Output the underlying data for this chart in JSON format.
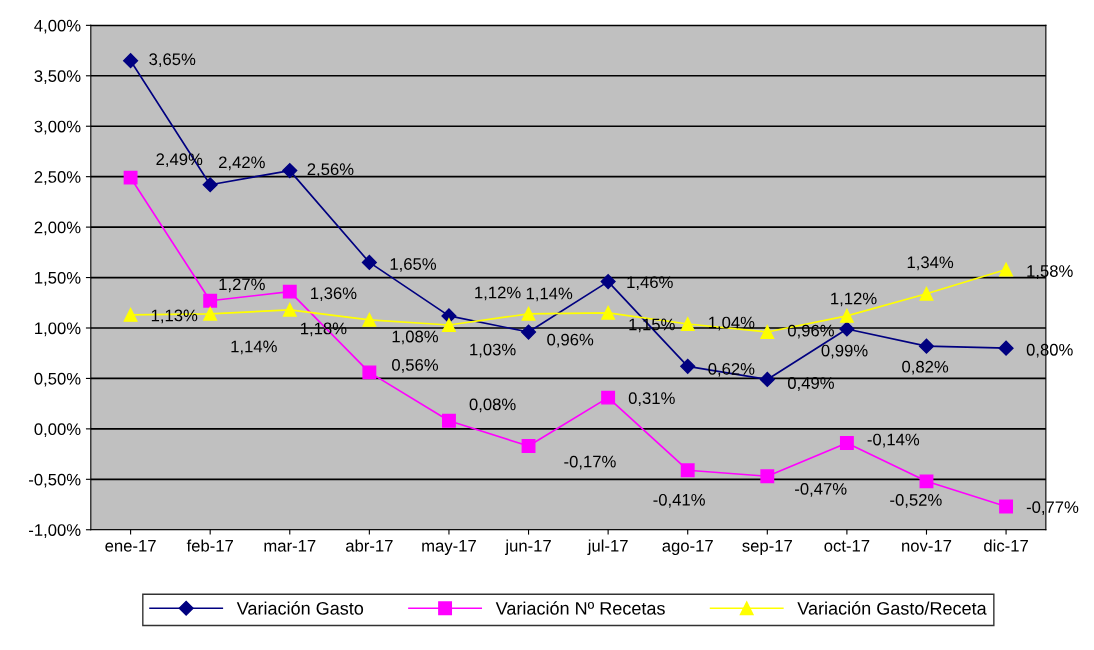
{
  "chart_data": {
    "type": "line",
    "categories": [
      "ene-17",
      "feb-17",
      "mar-17",
      "abr-17",
      "may-17",
      "jun-17",
      "jul-17",
      "ago-17",
      "sep-17",
      "oct-17",
      "nov-17",
      "dic-17"
    ],
    "series": [
      {
        "name": "Variación Gasto",
        "color": "#000080",
        "marker": "diamond",
        "values": [
          3.65,
          2.42,
          2.56,
          1.65,
          1.12,
          0.96,
          1.46,
          0.62,
          0.49,
          0.99,
          0.82,
          0.8
        ],
        "value_labels": [
          "3,65%",
          "2,42%",
          "2,56%",
          "1,65%",
          "1,12%",
          "0,96%",
          "1,46%",
          "0,62%",
          "0,49%",
          "0,99%",
          "0,82%",
          "0,80%"
        ]
      },
      {
        "name": "Variación Nº Recetas",
        "color": "#ff00ff",
        "marker": "square",
        "values": [
          2.49,
          1.27,
          1.36,
          0.56,
          0.08,
          -0.17,
          0.31,
          -0.41,
          -0.47,
          -0.14,
          -0.52,
          -0.77
        ],
        "value_labels": [
          "2,49%",
          "1,27%",
          "1,36%",
          "0,56%",
          "0,08%",
          "-0,17%",
          "0,31%",
          "-0,41%",
          "-0,47%",
          "-0,14%",
          "-0,52%",
          "-0,77%"
        ]
      },
      {
        "name": "Variación Gasto/Receta",
        "color": "#ffff00",
        "marker": "triangle",
        "values": [
          1.13,
          1.14,
          1.18,
          1.08,
          1.03,
          1.14,
          1.15,
          1.04,
          0.96,
          1.12,
          1.34,
          1.58
        ],
        "value_labels": [
          "1,13%",
          "1,14%",
          "1,18%",
          "1,08%",
          "1,03%",
          "1,14%",
          "1,15%",
          "1,04%",
          "0,96%",
          "1,12%",
          "1,34%",
          "1,58%"
        ]
      }
    ],
    "ylim": [
      -1,
      4
    ],
    "yticks": [
      {
        "value": -1,
        "label": "-1,00%"
      },
      {
        "value": -0.5,
        "label": "-0,50%"
      },
      {
        "value": 0,
        "label": "0,00%"
      },
      {
        "value": 0.5,
        "label": "0,50%"
      },
      {
        "value": 1,
        "label": "1,00%"
      },
      {
        "value": 1.5,
        "label": "1,50%"
      },
      {
        "value": 2,
        "label": "2,00%"
      },
      {
        "value": 2.5,
        "label": "2,50%"
      },
      {
        "value": 3,
        "label": "3,00%"
      },
      {
        "value": 3.5,
        "label": "3,50%"
      },
      {
        "value": 4,
        "label": "4,00%"
      }
    ],
    "grid": "y",
    "legend": "bottom",
    "line_style": "solid"
  }
}
